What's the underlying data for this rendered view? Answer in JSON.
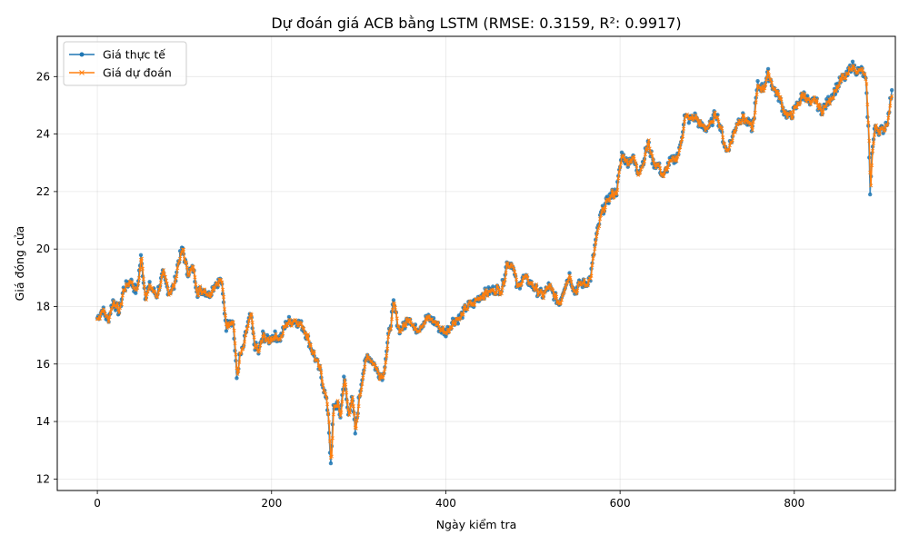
{
  "chart_data": {
    "type": "line",
    "title": "Dự đoán giá ACB bằng LSTM (RMSE: 0.3159, R²: 0.9917)",
    "xlabel": "Ngày kiểm tra",
    "ylabel": "Giá đóng cửa",
    "xlim": [
      -46,
      916
    ],
    "ylim": [
      11.6,
      27.4
    ],
    "xticks": [
      0,
      200,
      400,
      600,
      800
    ],
    "yticks": [
      12,
      14,
      16,
      18,
      20,
      22,
      24,
      26
    ],
    "grid": true,
    "legend_position": "top-left",
    "anchors": [
      [
        0,
        17.6
      ],
      [
        6,
        17.9
      ],
      [
        12,
        17.5
      ],
      [
        18,
        18.2
      ],
      [
        25,
        17.8
      ],
      [
        30,
        18.6
      ],
      [
        38,
        18.9
      ],
      [
        45,
        18.5
      ],
      [
        50,
        19.7
      ],
      [
        55,
        18.4
      ],
      [
        60,
        18.7
      ],
      [
        68,
        18.4
      ],
      [
        75,
        19.1
      ],
      [
        82,
        18.5
      ],
      [
        88,
        18.7
      ],
      [
        93,
        19.6
      ],
      [
        98,
        20.0
      ],
      [
        103,
        19.2
      ],
      [
        110,
        19.3
      ],
      [
        115,
        18.5
      ],
      [
        122,
        18.6
      ],
      [
        128,
        18.4
      ],
      [
        135,
        18.8
      ],
      [
        142,
        18.9
      ],
      [
        148,
        17.3
      ],
      [
        152,
        17.6
      ],
      [
        156,
        17.4
      ],
      [
        160,
        15.5
      ],
      [
        163,
        16.2
      ],
      [
        167,
        16.5
      ],
      [
        172,
        17.3
      ],
      [
        176,
        17.7
      ],
      [
        180,
        16.7
      ],
      [
        185,
        16.4
      ],
      [
        190,
        17.0
      ],
      [
        196,
        16.8
      ],
      [
        202,
        17.0
      ],
      [
        210,
        16.9
      ],
      [
        218,
        17.5
      ],
      [
        228,
        17.5
      ],
      [
        236,
        17.3
      ],
      [
        244,
        16.7
      ],
      [
        250,
        16.2
      ],
      [
        256,
        15.7
      ],
      [
        261,
        15.0
      ],
      [
        265,
        14.3
      ],
      [
        268,
        12.4
      ],
      [
        271,
        14.5
      ],
      [
        275,
        14.6
      ],
      [
        279,
        14.2
      ],
      [
        283,
        15.6
      ],
      [
        288,
        14.2
      ],
      [
        292,
        14.9
      ],
      [
        296,
        13.6
      ],
      [
        300,
        14.7
      ],
      [
        304,
        15.6
      ],
      [
        310,
        16.3
      ],
      [
        316,
        16.1
      ],
      [
        322,
        15.7
      ],
      [
        328,
        15.6
      ],
      [
        334,
        16.9
      ],
      [
        340,
        18.1
      ],
      [
        346,
        17.2
      ],
      [
        352,
        17.3
      ],
      [
        358,
        17.7
      ],
      [
        364,
        17.2
      ],
      [
        370,
        17.3
      ],
      [
        378,
        17.6
      ],
      [
        386,
        17.5
      ],
      [
        394,
        17.2
      ],
      [
        400,
        17.1
      ],
      [
        408,
        17.5
      ],
      [
        416,
        17.6
      ],
      [
        424,
        18.0
      ],
      [
        432,
        18.1
      ],
      [
        440,
        18.4
      ],
      [
        448,
        18.5
      ],
      [
        456,
        18.6
      ],
      [
        464,
        18.6
      ],
      [
        470,
        19.5
      ],
      [
        476,
        19.5
      ],
      [
        482,
        18.6
      ],
      [
        488,
        19.0
      ],
      [
        494,
        18.9
      ],
      [
        500,
        18.7
      ],
      [
        506,
        18.5
      ],
      [
        512,
        18.4
      ],
      [
        518,
        18.7
      ],
      [
        524,
        18.4
      ],
      [
        530,
        18.1
      ],
      [
        536,
        18.7
      ],
      [
        542,
        19.1
      ],
      [
        548,
        18.5
      ],
      [
        554,
        18.8
      ],
      [
        560,
        18.8
      ],
      [
        566,
        19.0
      ],
      [
        572,
        20.3
      ],
      [
        578,
        21.2
      ],
      [
        584,
        21.6
      ],
      [
        590,
        21.9
      ],
      [
        596,
        22.0
      ],
      [
        602,
        23.3
      ],
      [
        608,
        23.0
      ],
      [
        614,
        23.2
      ],
      [
        620,
        22.7
      ],
      [
        626,
        23.0
      ],
      [
        632,
        23.7
      ],
      [
        638,
        23.0
      ],
      [
        644,
        22.9
      ],
      [
        650,
        22.5
      ],
      [
        656,
        23.0
      ],
      [
        662,
        23.1
      ],
      [
        668,
        23.4
      ],
      [
        674,
        24.6
      ],
      [
        680,
        24.5
      ],
      [
        686,
        24.6
      ],
      [
        692,
        24.3
      ],
      [
        698,
        24.2
      ],
      [
        704,
        24.3
      ],
      [
        710,
        24.8
      ],
      [
        716,
        24.1
      ],
      [
        722,
        23.4
      ],
      [
        728,
        23.8
      ],
      [
        734,
        24.4
      ],
      [
        740,
        24.6
      ],
      [
        746,
        24.4
      ],
      [
        752,
        24.2
      ],
      [
        758,
        25.7
      ],
      [
        764,
        25.6
      ],
      [
        770,
        26.1
      ],
      [
        776,
        25.6
      ],
      [
        782,
        25.3
      ],
      [
        788,
        24.8
      ],
      [
        794,
        24.6
      ],
      [
        800,
        24.8
      ],
      [
        806,
        25.2
      ],
      [
        812,
        25.4
      ],
      [
        818,
        25.0
      ],
      [
        824,
        25.2
      ],
      [
        830,
        24.8
      ],
      [
        836,
        25.0
      ],
      [
        842,
        25.3
      ],
      [
        848,
        25.6
      ],
      [
        854,
        25.9
      ],
      [
        860,
        26.0
      ],
      [
        866,
        26.4
      ],
      [
        872,
        26.2
      ],
      [
        878,
        26.2
      ],
      [
        882,
        25.8
      ],
      [
        885,
        24.2
      ],
      [
        887,
        22.0
      ],
      [
        889,
        23.3
      ],
      [
        893,
        24.3
      ],
      [
        898,
        24.1
      ],
      [
        903,
        24.2
      ],
      [
        908,
        24.6
      ],
      [
        912,
        25.6
      ]
    ],
    "series": [
      {
        "name": "Giá thực tế",
        "color": "#1f77b4",
        "marker": "circle"
      },
      {
        "name": "Giá dự đoán",
        "color": "#ff7f0e",
        "marker": "x"
      }
    ]
  }
}
